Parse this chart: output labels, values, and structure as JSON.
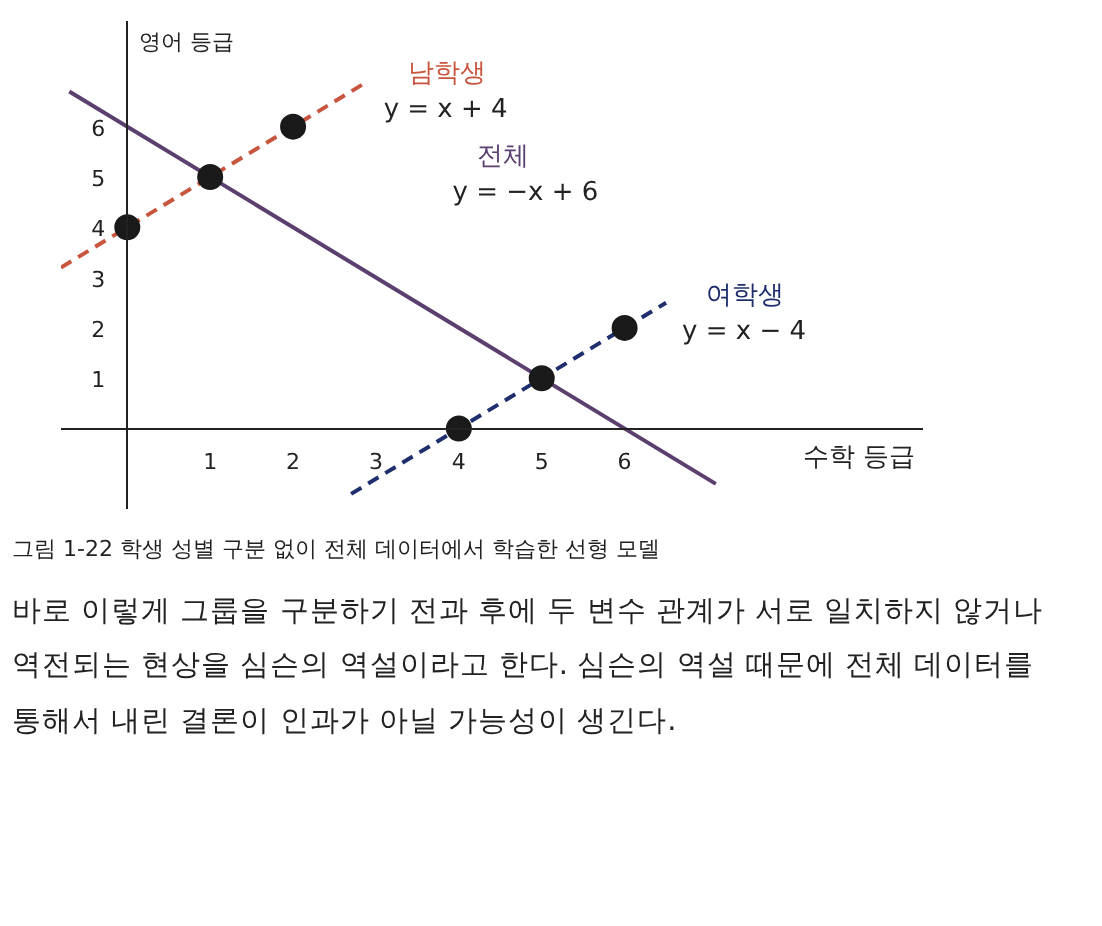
{
  "chart_data": {
    "type": "line",
    "xlabel": "수학 등급",
    "ylabel": "영어 등급",
    "xlim": [
      -0.8,
      9.6
    ],
    "ylim": [
      -1.6,
      8.1
    ],
    "xticks": [
      1,
      2,
      3,
      4,
      5,
      6
    ],
    "yticks": [
      1,
      2,
      3,
      4,
      5,
      6
    ],
    "grid": false,
    "marker": "circle",
    "series": [
      {
        "name": "남학생",
        "color": "#c8553d",
        "line_style": "dashed",
        "marker": "none",
        "x": [
          -0.8,
          2.9
        ],
        "values": [
          3.2,
          6.9
        ]
      },
      {
        "name": "전체",
        "color": "#5b3f6e",
        "line_style": "solid",
        "marker": "none",
        "x": [
          -0.7,
          7.1
        ],
        "values": [
          6.7,
          -1.1
        ]
      },
      {
        "name": "여학생",
        "color": "#1f2f6e",
        "line_style": "dashed",
        "marker": "none",
        "x": [
          2.7,
          6.5
        ],
        "values": [
          -1.3,
          2.5
        ]
      },
      {
        "type": "scatter",
        "color": "#1a1a1a",
        "x": [
          0,
          1,
          2
        ],
        "values": [
          4,
          5,
          6
        ]
      },
      {
        "type": "scatter",
        "color": "#1a1a1a",
        "x": [
          4,
          5,
          6
        ],
        "values": [
          0,
          1,
          2
        ]
      }
    ],
    "annotations": [
      "y = x + 4",
      "y = −x + 6",
      "y = x − 4",
      "그림 1-22 학생 성별 구분 없이 전체 데이터에서 학습한 선형 모델",
      "바로 이렇게 그룹을 구분하기 전과 후에 두 변수 관계가 서로 일치하지 않거나 역전되는 현상을 심슨의 역설이라고 한다. 심슨의 역설 때문에 전체 데이터를 통해서 내린 결론이 인과가 아닐 가능성이 생긴다."
    ]
  }
}
